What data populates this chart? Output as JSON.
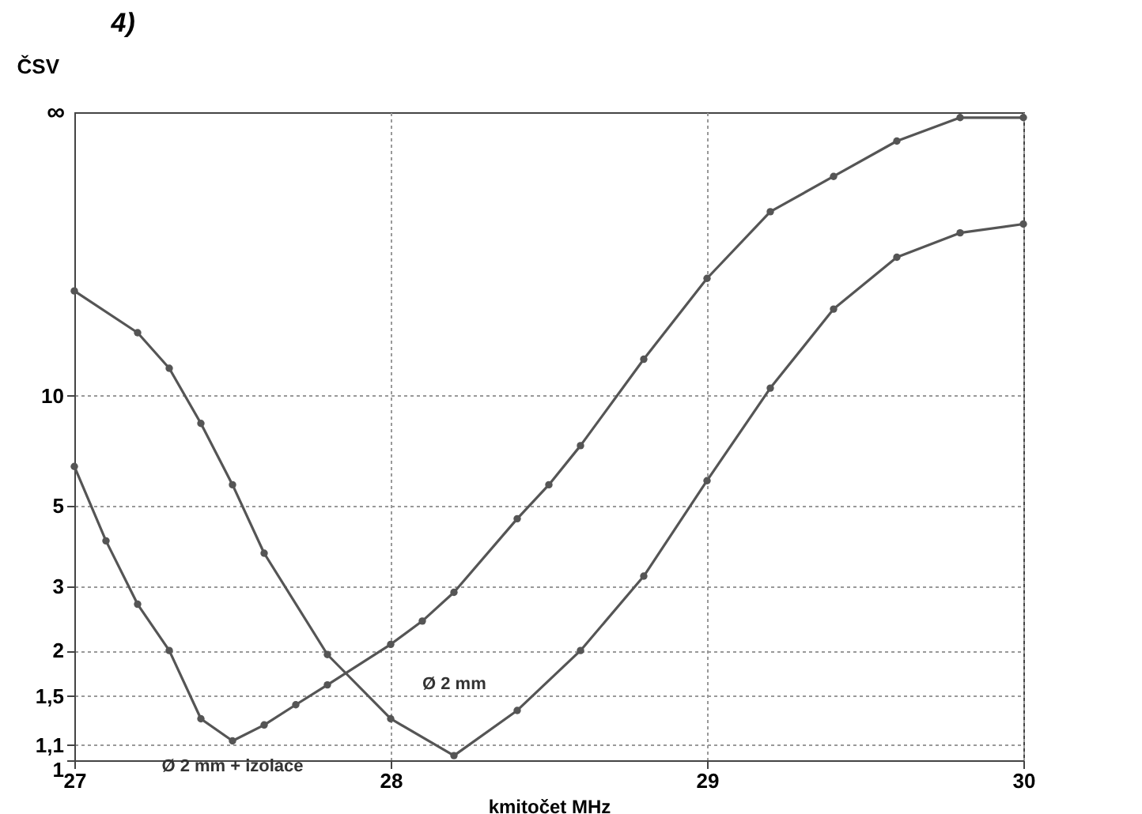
{
  "chart_data": {
    "type": "line",
    "title": "4)",
    "xlabel": "kmitočet MHz",
    "ylabel": "ČSV",
    "annotations": [
      "∞"
    ],
    "xlim": [
      27,
      30
    ],
    "xticks": [
      27,
      28,
      29,
      30
    ],
    "ylim": [
      1,
      60
    ],
    "yticks": [
      1,
      {
        "value": 1.1,
        "label": "1,1"
      },
      {
        "value": 1.5,
        "label": "1,5"
      },
      2,
      3,
      5,
      10
    ],
    "log": true,
    "grid": true,
    "marker": "circle",
    "line_style": "solid",
    "series": [
      {
        "name": "Ø 2 mm + izolace",
        "color": "#555555",
        "x": [
          27.0,
          27.1,
          27.2,
          27.3,
          27.4,
          27.5,
          27.6,
          27.7,
          27.8,
          28.0,
          28.1,
          28.2,
          28.4,
          28.5,
          28.6,
          28.8,
          29.0,
          29.2,
          29.4,
          29.6,
          29.8,
          30.0
        ],
        "values": [
          6.4,
          4.0,
          2.68,
          2.0,
          1.3,
          1.13,
          1.25,
          1.42,
          1.61,
          2.08,
          2.41,
          2.89,
          4.6,
          5.7,
          7.3,
          12.6,
          21,
          32,
          40,
          50,
          58,
          58
        ]
      },
      {
        "name": "Ø 2 mm",
        "color": "#555555",
        "x": [
          27.0,
          27.2,
          27.3,
          27.4,
          27.5,
          27.6,
          27.8,
          28.0,
          28.2,
          28.4,
          28.6,
          28.8,
          29.0,
          29.2,
          29.4,
          29.6,
          29.8,
          30.0
        ],
        "values": [
          19.4,
          14.9,
          11.9,
          8.4,
          5.7,
          3.7,
          1.95,
          1.3,
          1.03,
          1.37,
          2.0,
          3.2,
          5.85,
          10.5,
          17.3,
          24,
          28,
          29.6
        ]
      }
    ]
  }
}
